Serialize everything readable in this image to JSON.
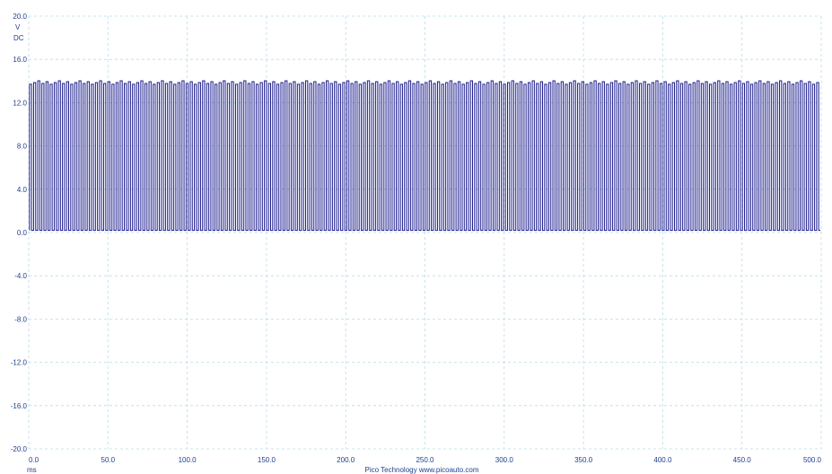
{
  "chart_data": {
    "type": "line",
    "title": "",
    "xlabel": "ms",
    "ylabel_lines": [
      "V",
      "DC"
    ],
    "xlim": [
      0,
      500
    ],
    "ylim": [
      -20,
      20
    ],
    "x_ticks": [
      "0.0",
      "50.0",
      "100.0",
      "150.0",
      "200.0",
      "250.0",
      "300.0",
      "350.0",
      "400.0",
      "450.0",
      "500.0"
    ],
    "y_ticks": [
      "20.0",
      "16.0",
      "12.0",
      "8.0",
      "4.0",
      "0.0",
      "-4.0",
      "-8.0",
      "-12.0",
      "-16.0",
      "-20.0"
    ],
    "grid": true,
    "footer": "Pico Technology   www.picoauto.com",
    "colors": {
      "trace": "#1a1a8c",
      "grid": "#b8dde8",
      "axis_text": "#1f3f8f"
    },
    "series": [
      {
        "signal": "square-wave",
        "low_v": 0.2,
        "high_v": 13.7,
        "period_ms": 2.6,
        "duty": 0.5,
        "x_start_ms": 0.5,
        "x_end_ms": 499.5
      }
    ]
  }
}
